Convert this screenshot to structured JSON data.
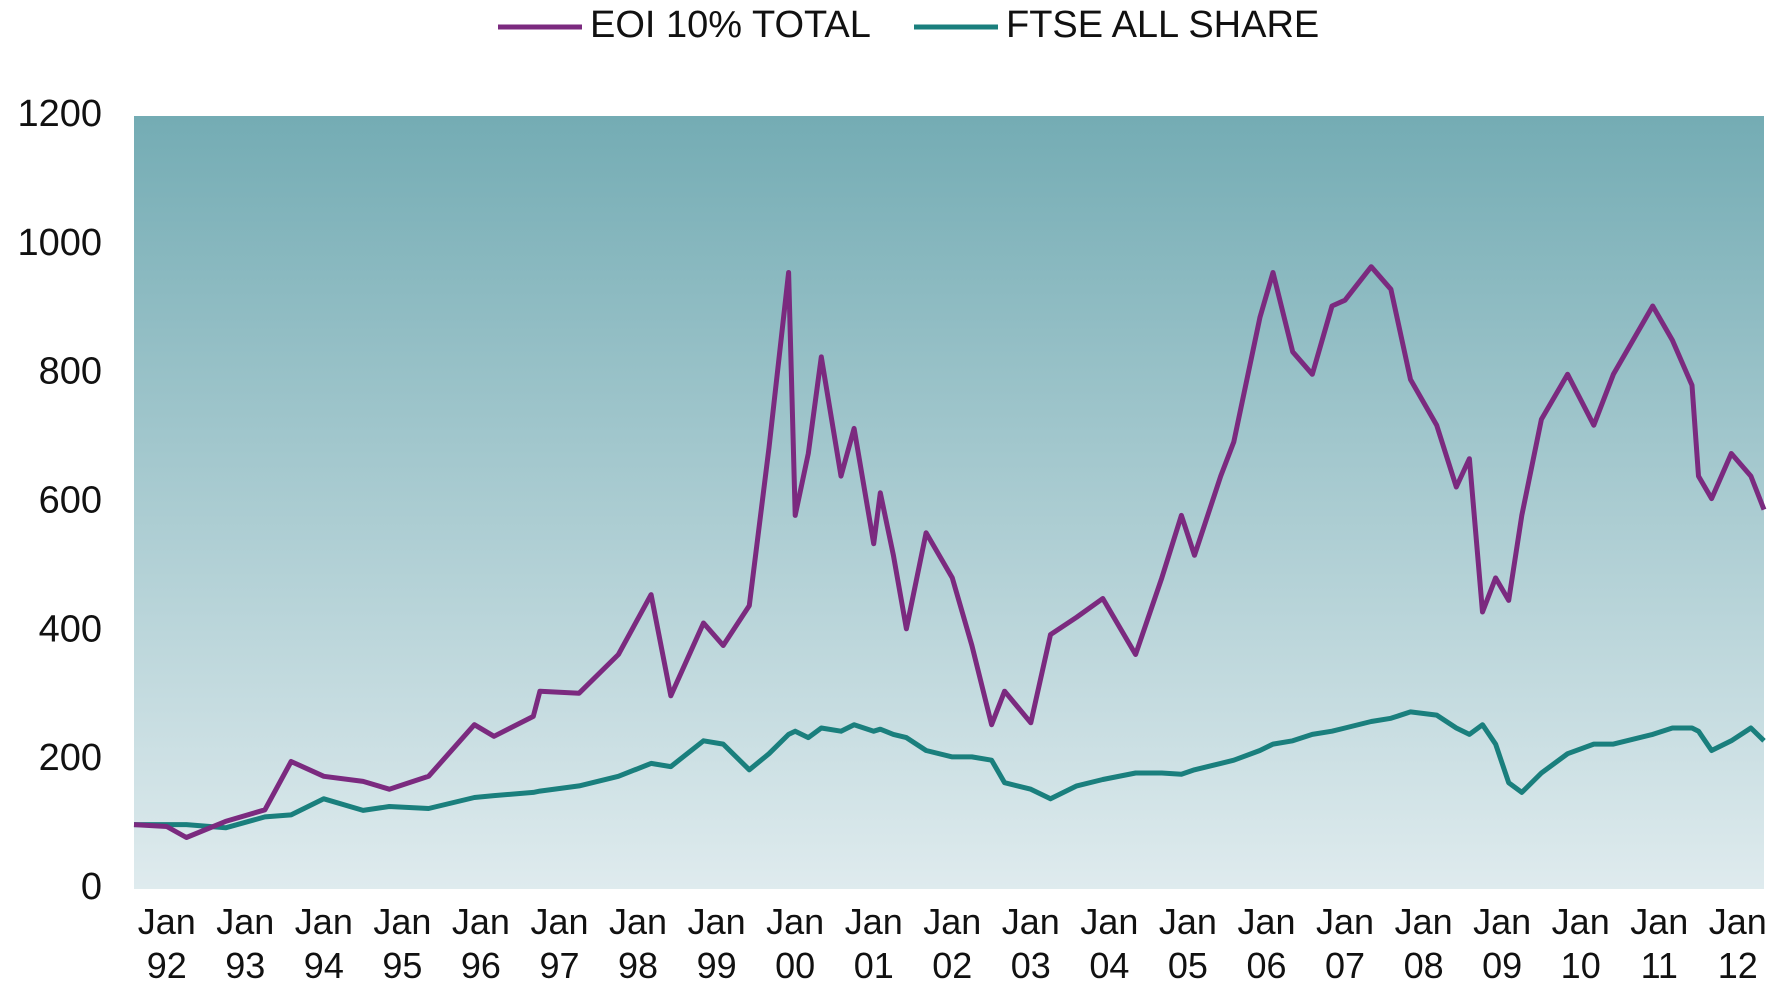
{
  "chart_data": {
    "type": "line",
    "legend": "top",
    "x": [
      "1991-08",
      "1992-01",
      "1992-04",
      "1992-10",
      "1993-04",
      "1993-08",
      "1994-01",
      "1994-07",
      "1994-11",
      "1995-05",
      "1995-12",
      "1996-03",
      "1996-09",
      "1996-10",
      "1997-04",
      "1997-10",
      "1998-03",
      "1998-06",
      "1998-11",
      "1999-02",
      "1999-06",
      "1999-09",
      "1999-12",
      "2000-01",
      "2000-03",
      "2000-05",
      "2000-08",
      "2000-10",
      "2001-01",
      "2001-02",
      "2001-04",
      "2001-06",
      "2001-09",
      "2002-01",
      "2002-04",
      "2002-07",
      "2002-09",
      "2003-01",
      "2003-04",
      "2003-08",
      "2003-12",
      "2004-05",
      "2004-09",
      "2004-12",
      "2005-02",
      "2005-06",
      "2005-08",
      "2005-12",
      "2006-02",
      "2006-05",
      "2006-08",
      "2006-11",
      "2007-01",
      "2007-05",
      "2007-08",
      "2007-11",
      "2008-03",
      "2008-06",
      "2008-08",
      "2008-10",
      "2008-12",
      "2009-02",
      "2009-04",
      "2009-07",
      "2009-11",
      "2010-03",
      "2010-06",
      "2010-12",
      "2011-03",
      "2011-06",
      "2011-07",
      "2011-09",
      "2011-12",
      "2012-03",
      "2012-05"
    ],
    "series": [
      {
        "name": "EOI 10% TOTAL",
        "color": "#7b2a7f",
        "values": [
          100,
          97,
          80,
          105,
          123,
          198,
          175,
          167,
          155,
          175,
          255,
          237,
          268,
          307,
          304,
          364,
          457,
          300,
          413,
          378,
          440,
          685,
          957,
          580,
          676,
          826,
          641,
          715,
          536,
          615,
          518,
          404,
          553,
          483,
          378,
          255,
          307,
          258,
          395,
          422,
          451,
          364,
          483,
          580,
          518,
          641,
          694,
          887,
          957,
          834,
          799,
          905,
          914,
          966,
          931,
          791,
          720,
          624,
          668,
          430,
          483,
          448,
          580,
          729,
          799,
          720,
          799,
          905,
          852,
          782,
          641,
          606,
          676,
          641,
          589
        ]
      },
      {
        "name": "FTSE ALL SHARE",
        "color": "#1a7f7d",
        "values": [
          100,
          100,
          100,
          95,
          112,
          115,
          140,
          122,
          128,
          125,
          142,
          145,
          150,
          152,
          160,
          175,
          195,
          190,
          230,
          225,
          185,
          210,
          240,
          245,
          235,
          250,
          245,
          255,
          245,
          248,
          240,
          235,
          215,
          205,
          205,
          200,
          165,
          155,
          140,
          160,
          170,
          180,
          180,
          178,
          185,
          195,
          200,
          215,
          225,
          230,
          240,
          245,
          250,
          260,
          265,
          275,
          270,
          250,
          240,
          255,
          225,
          165,
          150,
          180,
          210,
          225,
          225,
          240,
          250,
          250,
          245,
          215,
          230,
          250,
          230
        ]
      }
    ],
    "xlim": [
      "1991-08",
      "2012-05"
    ],
    "xticks": [
      {
        "value": "1992-01",
        "label": "Jan 92"
      },
      {
        "value": "1993-01",
        "label": "Jan 93"
      },
      {
        "value": "1994-01",
        "label": "Jan 94"
      },
      {
        "value": "1995-01",
        "label": "Jan 95"
      },
      {
        "value": "1996-01",
        "label": "Jan 96"
      },
      {
        "value": "1997-01",
        "label": "Jan 97"
      },
      {
        "value": "1998-01",
        "label": "Jan 98"
      },
      {
        "value": "1999-01",
        "label": "Jan 99"
      },
      {
        "value": "2000-01",
        "label": "Jan 00"
      },
      {
        "value": "2001-01",
        "label": "Jan 01"
      },
      {
        "value": "2002-01",
        "label": "Jan 02"
      },
      {
        "value": "2003-01",
        "label": "Jan 03"
      },
      {
        "value": "2004-01",
        "label": "Jan 04"
      },
      {
        "value": "2005-01",
        "label": "Jan 05"
      },
      {
        "value": "2006-01",
        "label": "Jan 06"
      },
      {
        "value": "2007-01",
        "label": "Jan 07"
      },
      {
        "value": "2008-01",
        "label": "Jan 08"
      },
      {
        "value": "2009-01",
        "label": "Jan 09"
      },
      {
        "value": "2010-01",
        "label": "Jan 10"
      },
      {
        "value": "2011-01",
        "label": "Jan 11"
      },
      {
        "value": "2012-01",
        "label": "Jan 12"
      }
    ],
    "ylim": [
      0,
      1200
    ],
    "yticks": [
      0,
      200,
      400,
      600,
      800,
      1000,
      1200
    ],
    "grid": false
  }
}
